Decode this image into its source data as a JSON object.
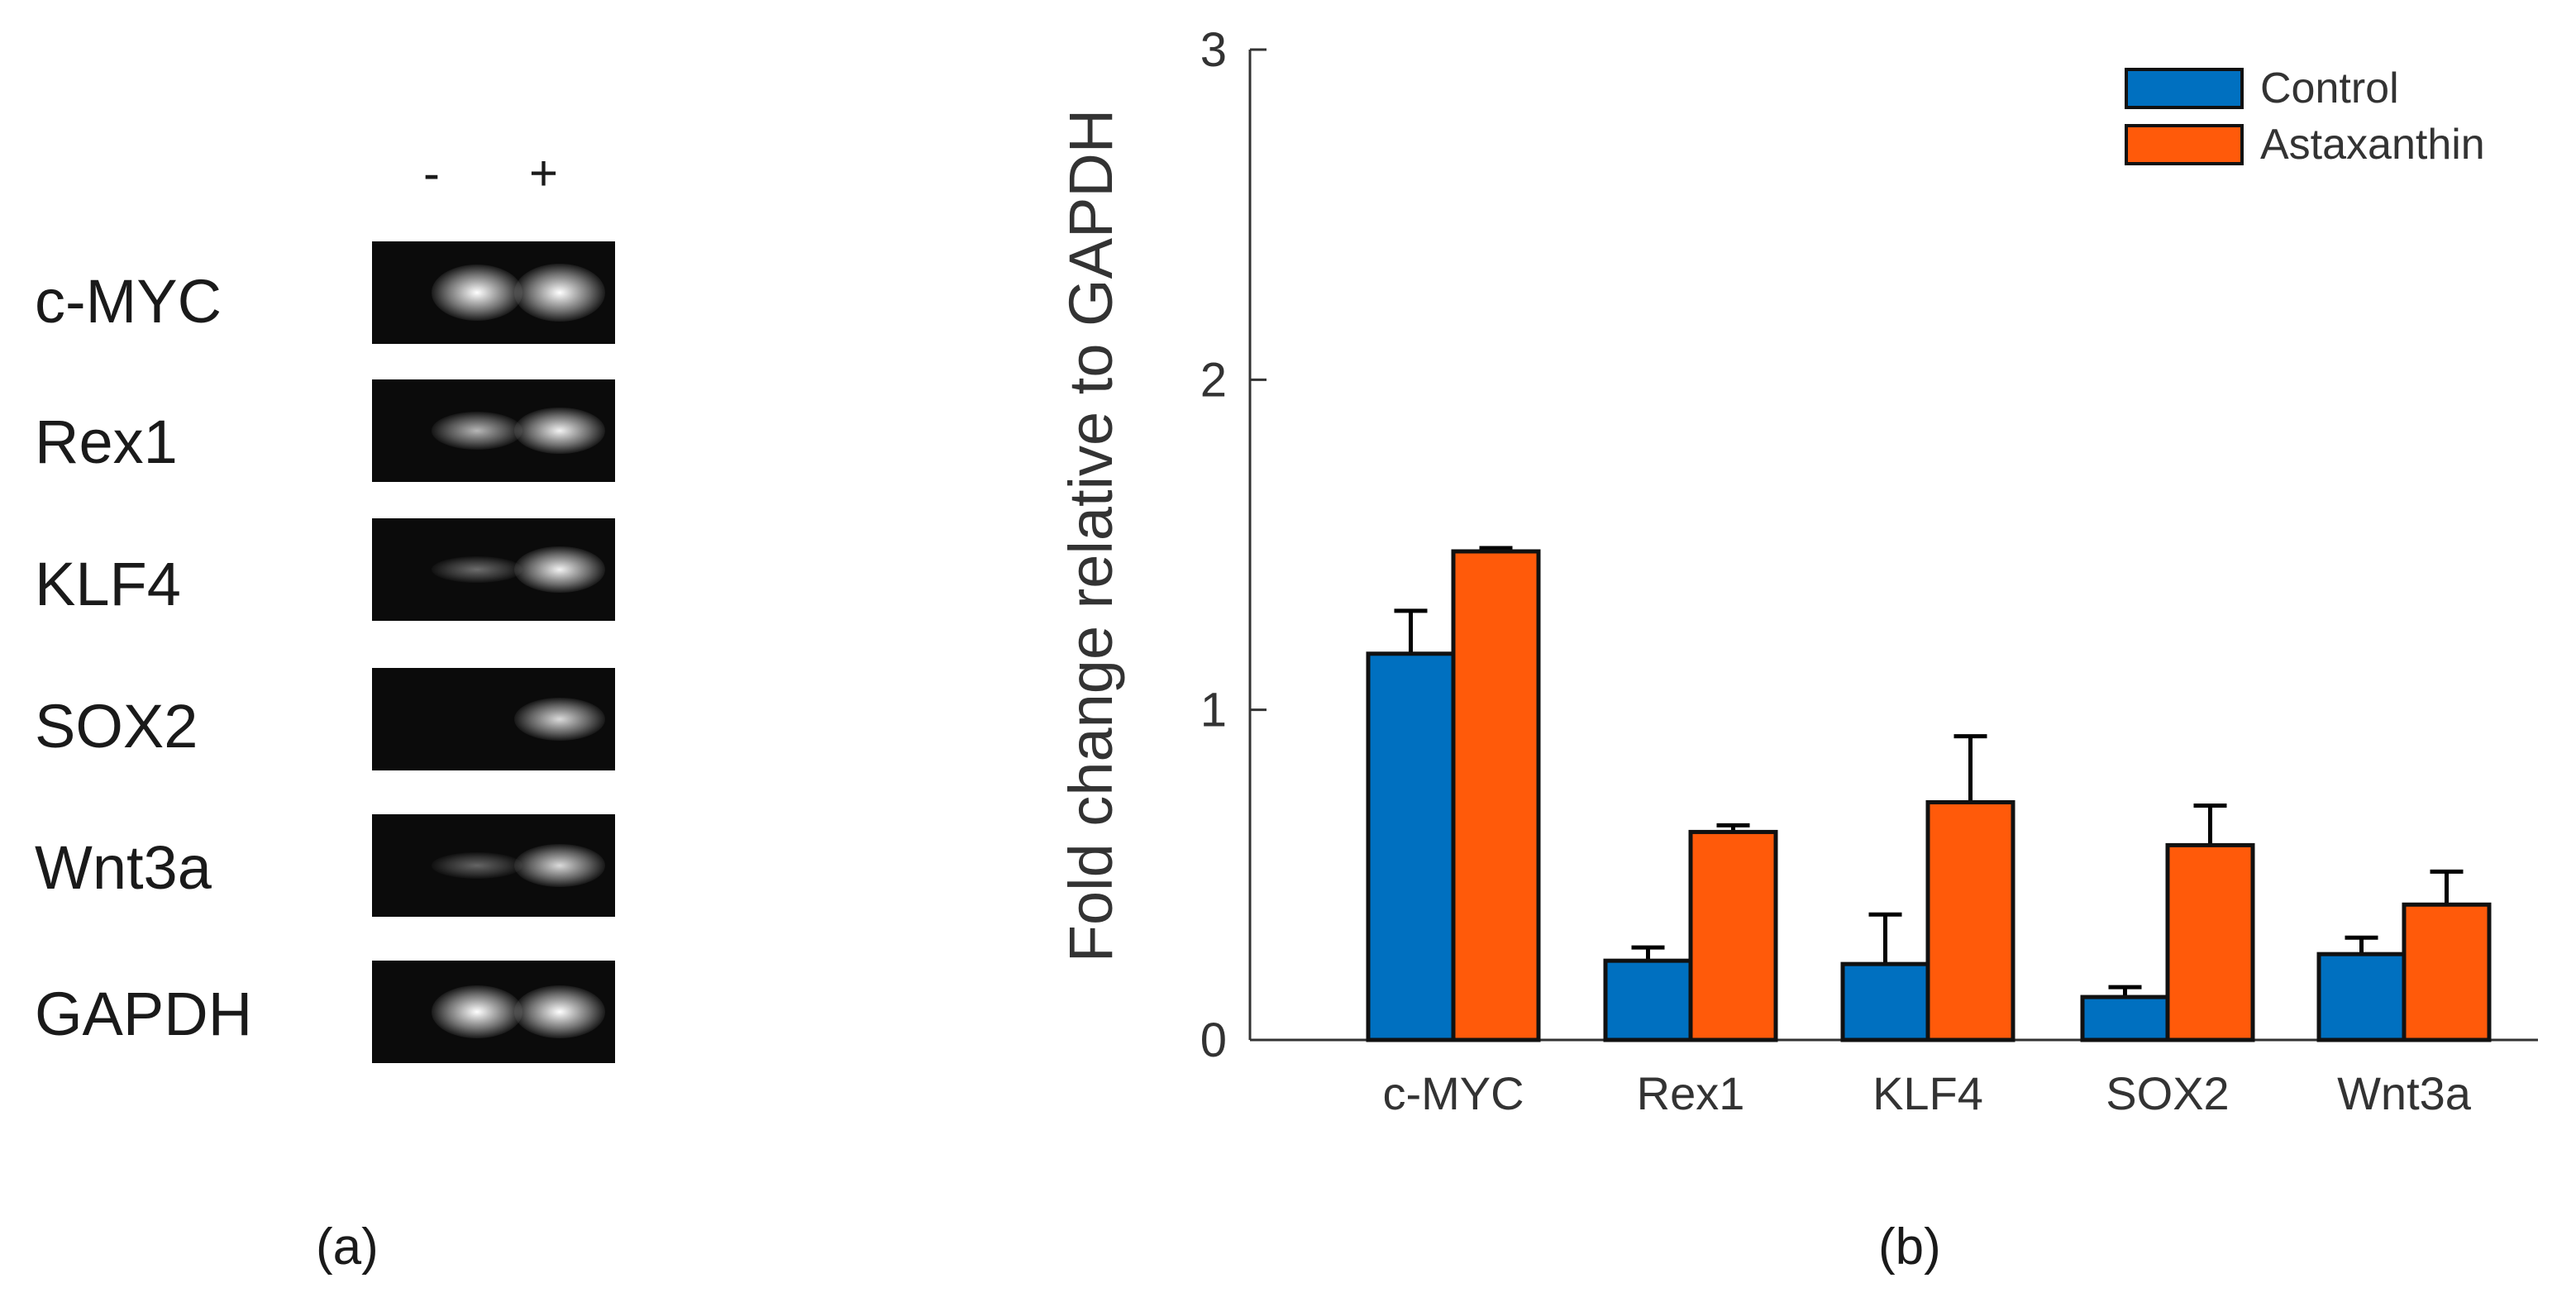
{
  "panel_a": {
    "label": "(a)",
    "lanes": [
      "-",
      "+"
    ],
    "rows": [
      {
        "gene": "c-MYC",
        "minus": 0.95,
        "plus": 1.0
      },
      {
        "gene": "Rex1",
        "minus": 0.45,
        "plus": 0.7
      },
      {
        "gene": "KLF4",
        "minus": 0.15,
        "plus": 0.7
      },
      {
        "gene": "SOX2",
        "minus": 0.0,
        "plus": 0.6
      },
      {
        "gene": "Wnt3a",
        "minus": 0.12,
        "plus": 0.6
      },
      {
        "gene": "GAPDH",
        "minus": 0.85,
        "plus": 0.85
      }
    ]
  },
  "panel_b_label": "(b)",
  "chart_data": {
    "type": "bar",
    "title": "",
    "xlabel": "",
    "ylabel": "Fold change relative to GAPDH",
    "ylim": [
      0,
      3
    ],
    "yticks": [
      0,
      1,
      2,
      3
    ],
    "categories": [
      "c-MYC",
      "Rex1",
      "KLF4",
      "SOX2",
      "Wnt3a"
    ],
    "legend_position": "top-right",
    "series": [
      {
        "name": "Control",
        "color": "#0070C0",
        "values": [
          1.17,
          0.24,
          0.23,
          0.13,
          0.26
        ],
        "errors": [
          0.13,
          0.04,
          0.15,
          0.03,
          0.05
        ]
      },
      {
        "name": "Astaxanthin",
        "color": "#FF5A0A",
        "values": [
          1.48,
          0.63,
          0.72,
          0.59,
          0.41
        ],
        "errors": [
          0.01,
          0.02,
          0.2,
          0.12,
          0.1
        ]
      }
    ]
  }
}
